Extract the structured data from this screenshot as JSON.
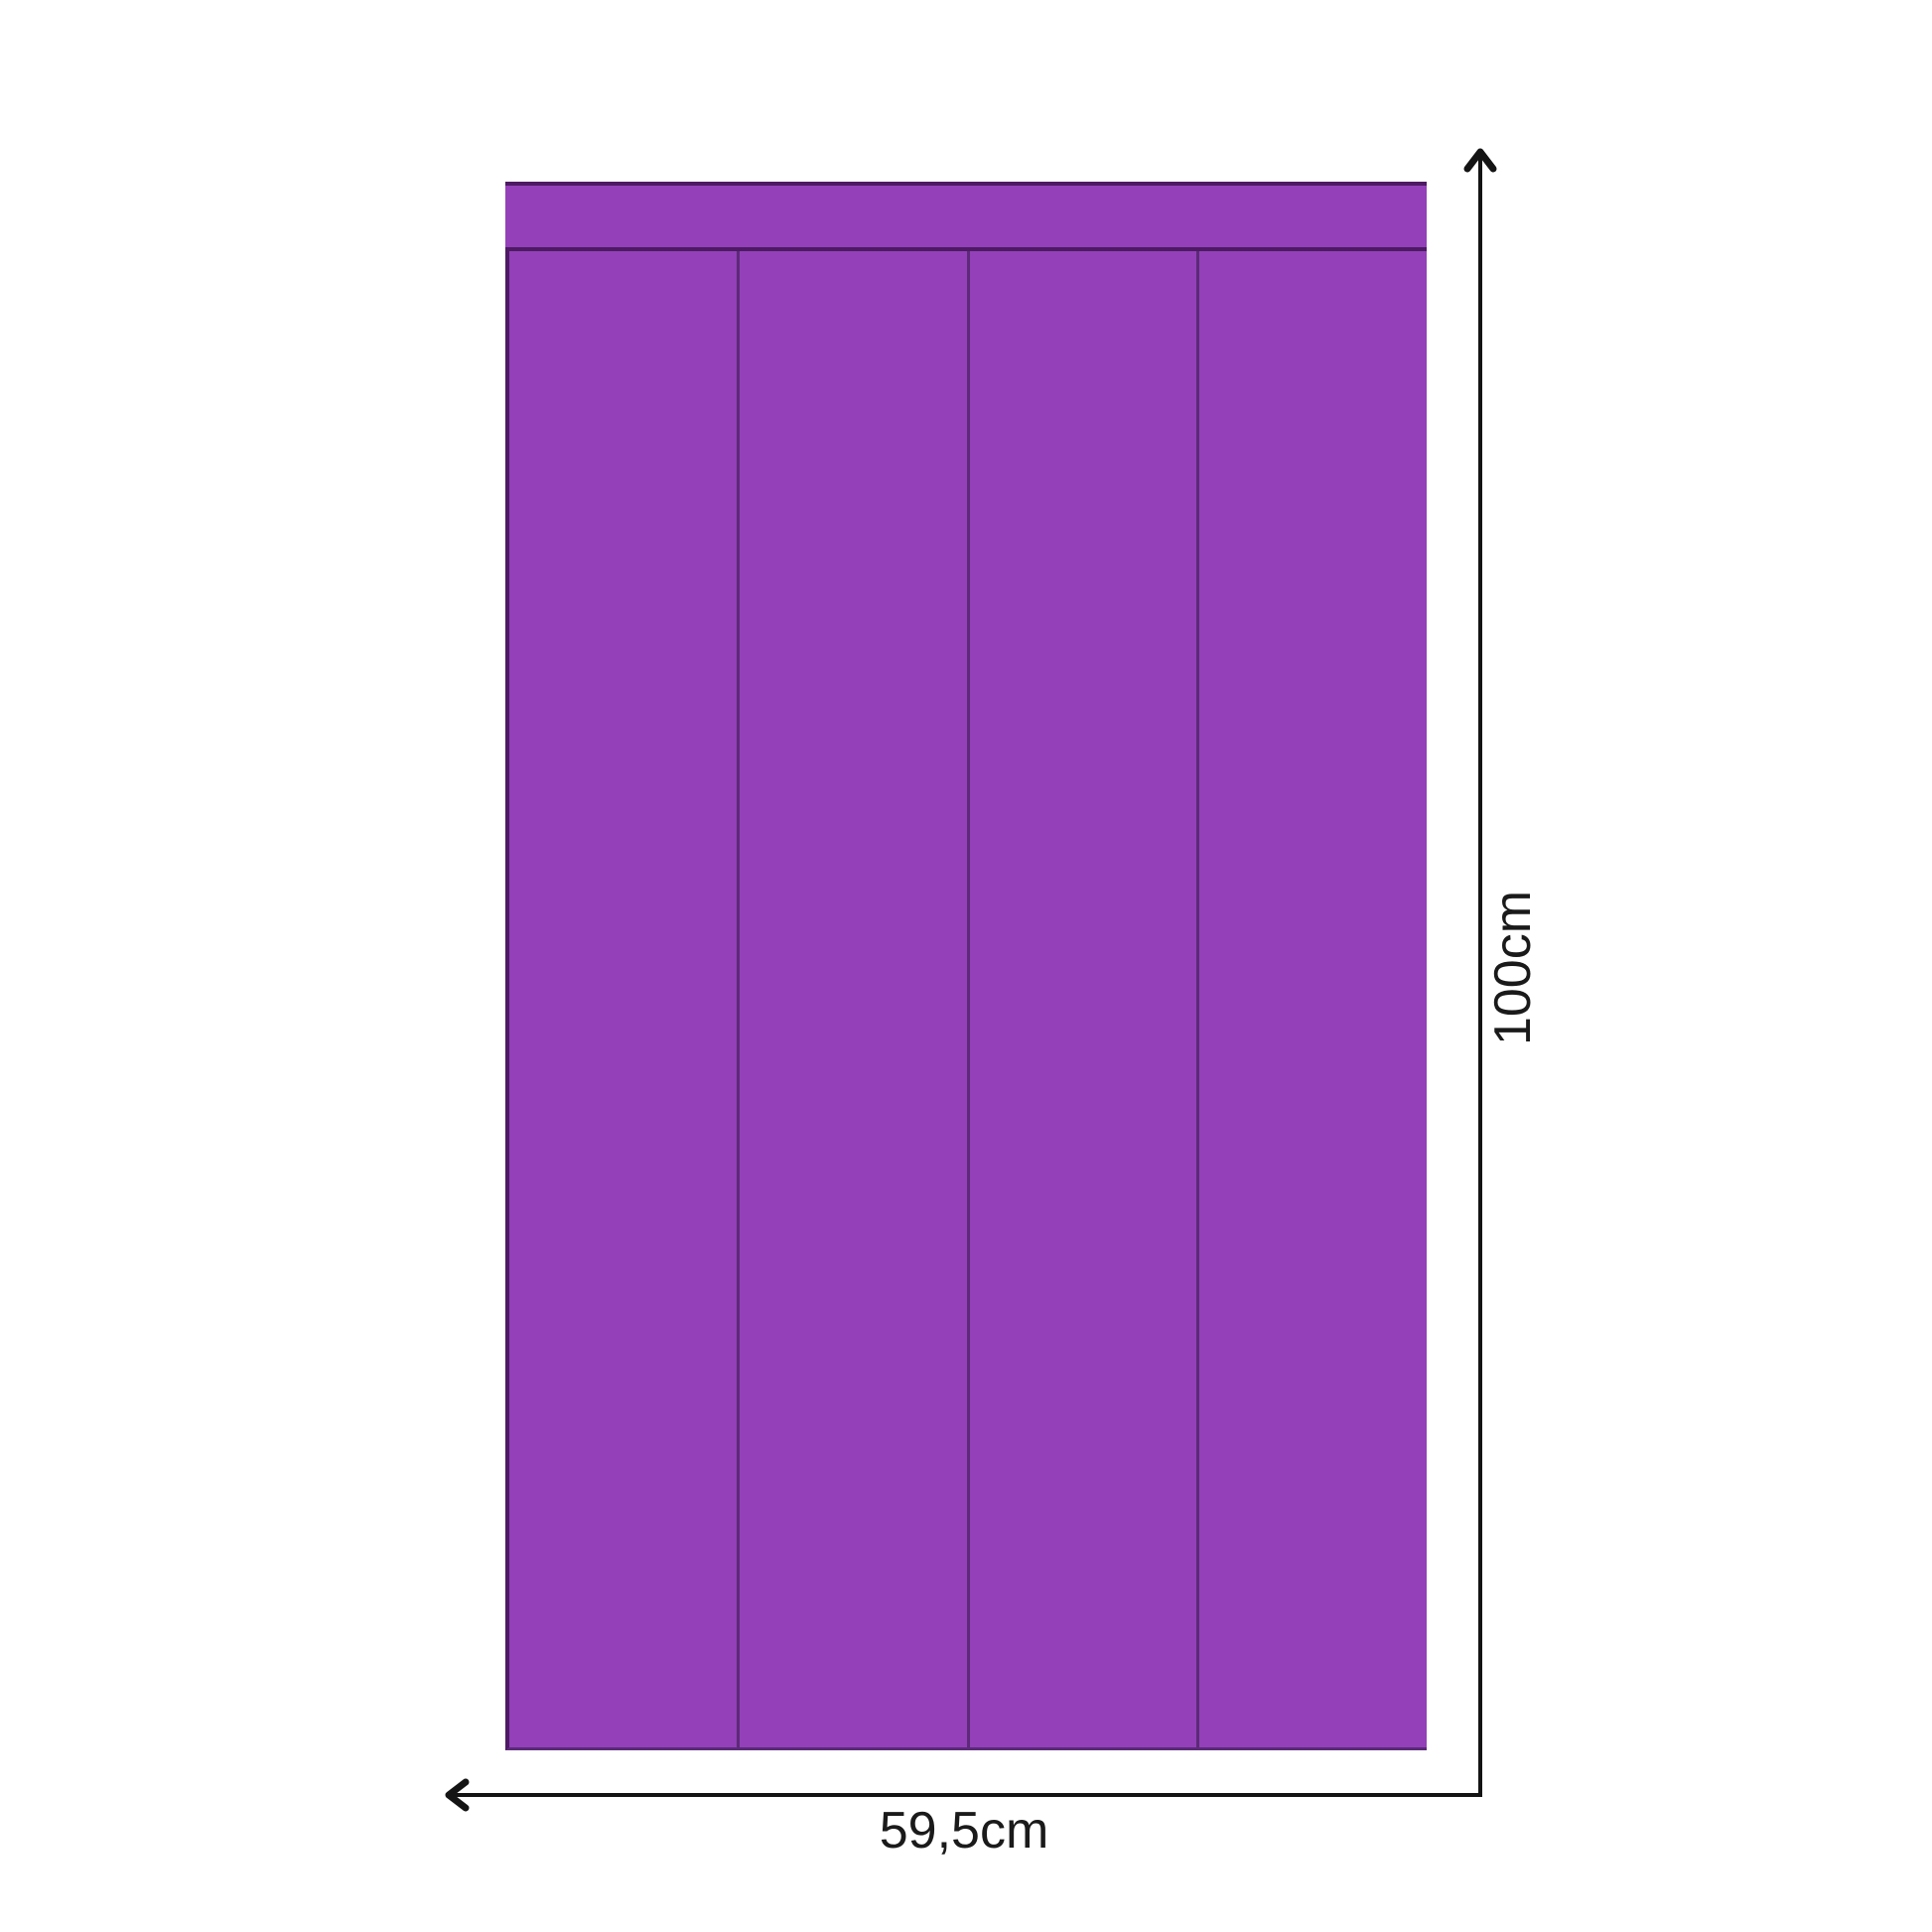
{
  "panel": {
    "description": "purple vertical slat panel with top rail",
    "slat_count": 4,
    "color": "#9340b9",
    "divider_color": "#5c2a78",
    "edge_color": "#4d1a63"
  },
  "dimensions": {
    "height": {
      "label": "100cm"
    },
    "width": {
      "label": "59,5cm"
    },
    "arrow_color": "#141414",
    "text_color": "#1a1a1a"
  }
}
